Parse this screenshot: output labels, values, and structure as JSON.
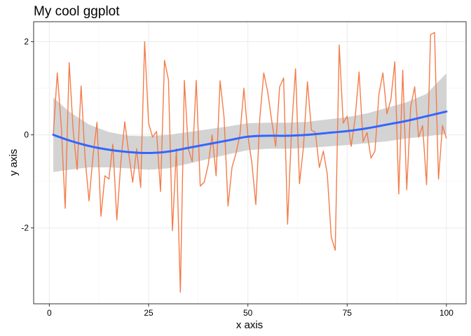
{
  "chart_data": {
    "type": "line",
    "title": "My cool ggplot",
    "xlabel": "x axis",
    "ylabel": "y axis",
    "xlim": [
      -3.95,
      104.95
    ],
    "ylim": [
      -3.63,
      2.43
    ],
    "xticks": [
      0,
      25,
      50,
      75,
      100
    ],
    "xtick_labels": [
      "0",
      "25",
      "50",
      "75",
      "100"
    ],
    "yticks": [
      -2,
      0,
      2
    ],
    "ytick_labels": [
      "-2",
      "0",
      "2"
    ],
    "grid": true,
    "legend": "none",
    "series": [
      {
        "kind": "line",
        "color": "#F47C4A",
        "x": [
          1,
          2,
          3,
          4,
          5,
          6,
          7,
          8,
          9,
          10,
          11,
          12,
          13,
          14,
          15,
          16,
          17,
          18,
          19,
          20,
          21,
          22,
          23,
          24,
          25,
          26,
          27,
          28,
          29,
          30,
          31,
          32,
          33,
          34,
          35,
          36,
          37,
          38,
          39,
          40,
          41,
          42,
          43,
          44,
          45,
          46,
          47,
          48,
          49,
          50,
          51,
          52,
          53,
          54,
          55,
          56,
          57,
          58,
          59,
          60,
          61,
          62,
          63,
          64,
          65,
          66,
          67,
          68,
          69,
          70,
          71,
          72,
          73,
          74,
          75,
          76,
          77,
          78,
          79,
          80,
          81,
          82,
          83,
          84,
          85,
          86,
          87,
          88,
          89,
          90,
          91,
          92,
          93,
          94,
          95,
          96,
          97,
          98,
          99,
          100
        ],
        "y": [
          0.0,
          1.33,
          0.2,
          -1.58,
          1.55,
          0.1,
          -0.75,
          1.05,
          -0.5,
          -1.42,
          -0.45,
          0.27,
          -1.75,
          -0.88,
          -0.95,
          -0.2,
          -1.83,
          -0.6,
          0.28,
          -0.4,
          -1.02,
          -0.3,
          -1.13,
          2.0,
          0.25,
          -0.05,
          0.07,
          -1.22,
          1.6,
          1.18,
          -2.06,
          -0.3,
          -3.38,
          1.17,
          -0.3,
          -0.58,
          1.17,
          -1.1,
          -1.02,
          -0.65,
          0.0,
          -0.88,
          1.16,
          0.38,
          -1.53,
          -0.7,
          -0.4,
          0.0,
          1.0,
          -0.02,
          -0.6,
          -1.5,
          0.35,
          1.33,
          0.92,
          0.3,
          -0.25,
          1.03,
          1.22,
          -1.92,
          0.1,
          1.42,
          -1.05,
          -0.25,
          1.14,
          0.1,
          0.05,
          -0.7,
          -0.35,
          -0.85,
          -2.2,
          -2.48,
          1.93,
          0.25,
          0.4,
          -0.25,
          0.35,
          1.35,
          -0.15,
          0.05,
          -0.5,
          -0.35,
          0.87,
          1.33,
          0.45,
          0.75,
          1.57,
          -1.27,
          1.39,
          -1.18,
          0.6,
          1.03,
          -0.05,
          0.2,
          -1.07,
          2.15,
          2.2,
          -0.95,
          0.2,
          -0.08
        ]
      },
      {
        "kind": "smooth",
        "color": "#3366FF",
        "ribbon_color": "#D3D3D3",
        "x": [
          1,
          5,
          10,
          15,
          20,
          25,
          30,
          35,
          40,
          45,
          50,
          55,
          60,
          65,
          70,
          75,
          80,
          85,
          90,
          95,
          100
        ],
        "y": [
          0.0,
          -0.12,
          -0.24,
          -0.32,
          -0.37,
          -0.39,
          -0.36,
          -0.28,
          -0.2,
          -0.12,
          -0.04,
          -0.02,
          -0.02,
          0.0,
          0.04,
          0.08,
          0.14,
          0.22,
          0.3,
          0.4,
          0.5
        ],
        "ymin": [
          -0.8,
          -0.75,
          -0.7,
          -0.7,
          -0.72,
          -0.75,
          -0.72,
          -0.62,
          -0.52,
          -0.42,
          -0.33,
          -0.3,
          -0.3,
          -0.28,
          -0.25,
          -0.22,
          -0.18,
          -0.14,
          -0.08,
          -0.03,
          0.02
        ],
        "ymax": [
          0.8,
          0.5,
          0.22,
          0.06,
          -0.02,
          -0.03,
          0.0,
          0.06,
          0.12,
          0.18,
          0.25,
          0.26,
          0.26,
          0.28,
          0.33,
          0.38,
          0.46,
          0.58,
          0.7,
          0.88,
          1.32
        ]
      }
    ]
  }
}
